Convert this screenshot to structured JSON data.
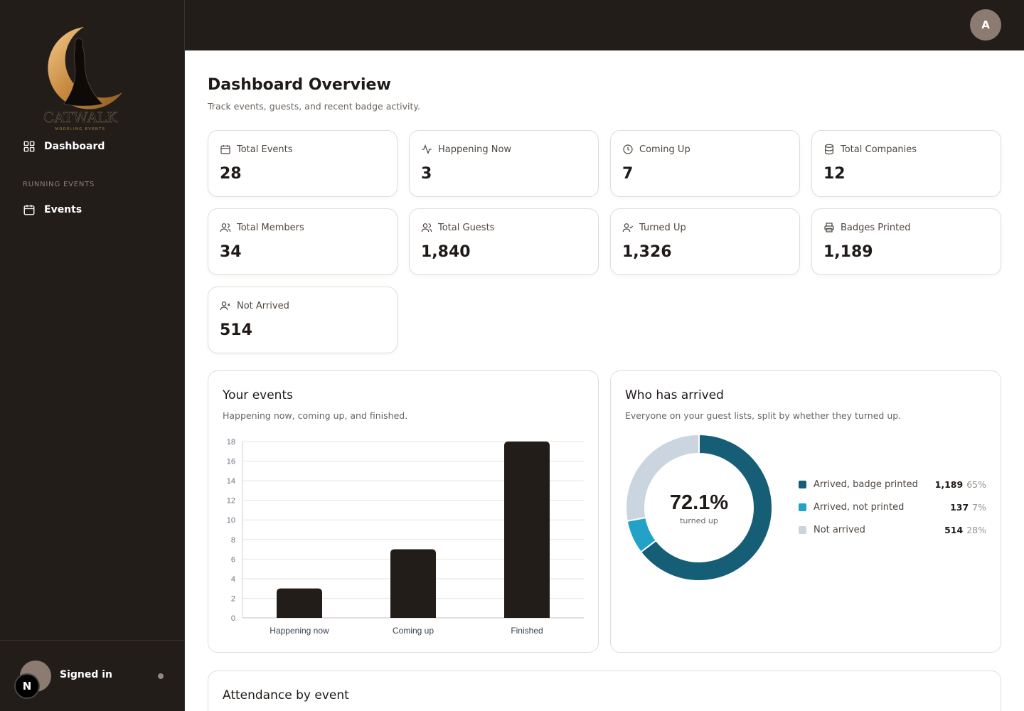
{
  "sidebar": {
    "brand": "CATWALK",
    "brand_sub": "MODELING EVENTS",
    "nav": [
      {
        "label": "Dashboard",
        "icon": "grid-icon"
      },
      {
        "label": "Events",
        "icon": "calendar-icon"
      }
    ],
    "section_label": "RUNNING EVENTS",
    "footer": {
      "status": "Signed in",
      "badge": "N"
    }
  },
  "topbar": {
    "avatar_initial": "A"
  },
  "header": {
    "title": "Dashboard Overview",
    "subtitle": "Track events, guests, and recent badge activity."
  },
  "stats": [
    {
      "label": "Total Events",
      "value": "28",
      "icon": "calendar-icon"
    },
    {
      "label": "Happening Now",
      "value": "3",
      "icon": "activity-icon"
    },
    {
      "label": "Coming Up",
      "value": "7",
      "icon": "clock-icon"
    },
    {
      "label": "Total Companies",
      "value": "12",
      "icon": "database-icon"
    },
    {
      "label": "Total Members",
      "value": "34",
      "icon": "users-icon"
    },
    {
      "label": "Total Guests",
      "value": "1,840",
      "icon": "users-icon"
    },
    {
      "label": "Turned Up",
      "value": "1,326",
      "icon": "user-check-icon"
    },
    {
      "label": "Badges Printed",
      "value": "1,189",
      "icon": "printer-icon"
    },
    {
      "label": "Not Arrived",
      "value": "514",
      "icon": "user-x-icon"
    }
  ],
  "events_panel": {
    "title": "Your events",
    "subtitle": "Happening now, coming up, and finished."
  },
  "arrival_panel": {
    "title": "Who has arrived",
    "subtitle": "Everyone on your guest lists, split by whether they turned up.",
    "center_value": "72.1%",
    "center_label": "turned up",
    "legend": [
      {
        "label": "Arrived, badge printed",
        "count": "1,189",
        "pct": "65%",
        "color": "#155e75"
      },
      {
        "label": "Arrived, not printed",
        "count": "137",
        "pct": "7%",
        "color": "#22a2c6"
      },
      {
        "label": "Not arrived",
        "count": "514",
        "pct": "28%",
        "color": "#cbd5df"
      }
    ]
  },
  "attendance_panel": {
    "title": "Attendance by event"
  },
  "chart_data": [
    {
      "type": "bar",
      "categories": [
        "Happening now",
        "Coming up",
        "Finished"
      ],
      "values": [
        3,
        7,
        18
      ],
      "ylim": [
        0,
        18
      ],
      "yticks": [
        "0",
        "2",
        "4",
        "6",
        "8",
        "10",
        "12",
        "14",
        "16",
        "18"
      ],
      "grid": true,
      "color": "#231d1a"
    },
    {
      "type": "pie",
      "categories": [
        "Arrived, badge printed",
        "Arrived, not printed",
        "Not arrived"
      ],
      "values": [
        1189,
        137,
        514
      ],
      "colors": [
        "#155e75",
        "#22a2c6",
        "#cbd5df"
      ]
    }
  ]
}
